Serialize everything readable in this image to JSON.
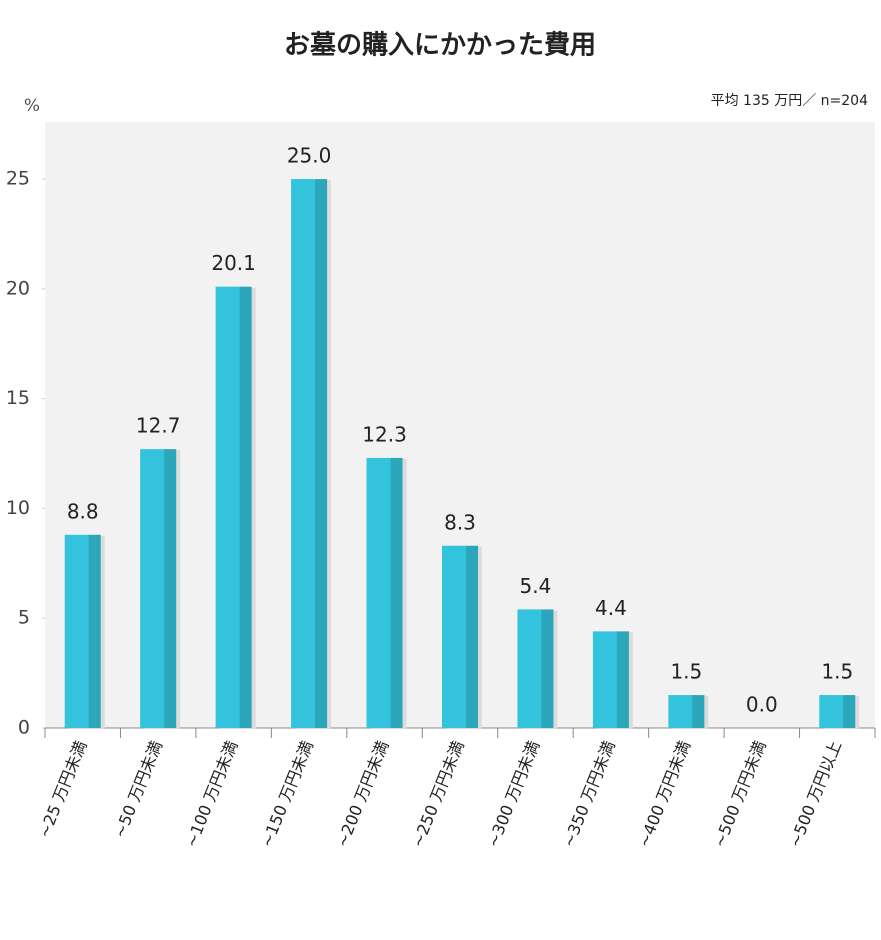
{
  "chart_data": {
    "type": "bar",
    "title": "お墓の購入にかかった費用",
    "subtitle": "平均 135 万円／ n=204",
    "y_label": "%",
    "categories": [
      "~25 万円未満",
      "~50 万円未満",
      "~100 万円未満",
      "~150 万円未満",
      "~200 万円未満",
      "~250 万円未満",
      "~300 万円未満",
      "~350 万円未満",
      "~400 万円未満",
      "~500 万円未満",
      "~500 万円以上"
    ],
    "values": [
      8.8,
      12.7,
      20.1,
      25.0,
      12.3,
      8.3,
      5.4,
      4.4,
      1.5,
      0.0,
      1.5
    ],
    "value_labels": [
      "8.8",
      "12.7",
      "20.1",
      "25.0",
      "12.3",
      "8.3",
      "5.4",
      "4.4",
      "1.5",
      "0.0",
      "1.5"
    ],
    "color": "#33c3dc",
    "ylim": [
      0,
      27.6
    ],
    "yticks": [
      0,
      5,
      10,
      15,
      20,
      25
    ]
  }
}
